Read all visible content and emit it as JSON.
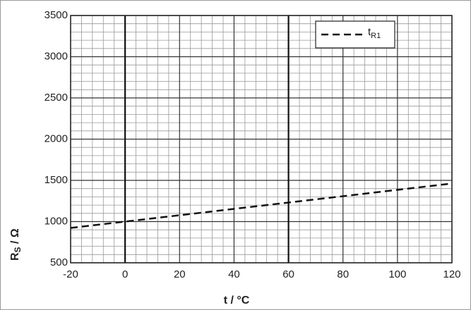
{
  "chart_data": {
    "type": "line",
    "x": [
      -20,
      0,
      20,
      40,
      60,
      80,
      100,
      120
    ],
    "series": [
      {
        "name": "t",
        "name_sub": "R1",
        "color": "#111111",
        "dash": true,
        "values": [
          923,
          1000,
          1077,
          1154,
          1231,
          1308,
          1385,
          1462
        ]
      }
    ],
    "xlim": [
      -20,
      120
    ],
    "xticks": [
      -20,
      0,
      20,
      40,
      60,
      80,
      100,
      120
    ],
    "ylim": [
      500,
      3500
    ],
    "yticks": [
      500,
      1000,
      1500,
      2000,
      2500,
      3000,
      3500
    ],
    "emphasis_x": [
      0,
      60
    ],
    "xlabel": "t / °C",
    "ylabel": {
      "text": "R",
      "sub": "S",
      "unit": " / Ω"
    },
    "grid": true,
    "legend": "upper right"
  }
}
